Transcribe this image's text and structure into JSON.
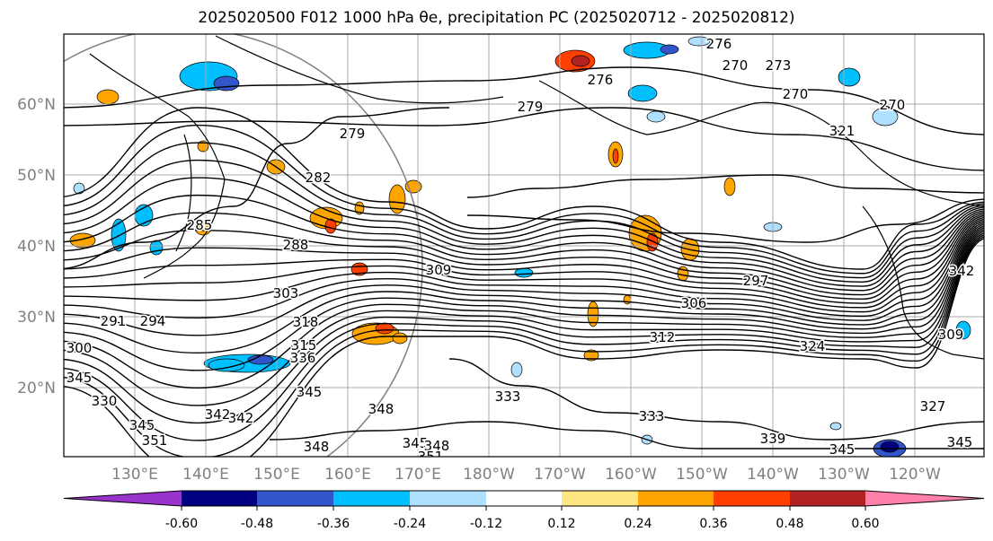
{
  "chart_data": {
    "type": "contour",
    "title": "2025020500 F012 1000 hPa θe, precipitation PC (2025020712 - 2025020812)",
    "map": {
      "lon_range": [
        120,
        -110
      ],
      "lat_range": [
        10,
        70
      ],
      "lon_ticks": [
        "130°E",
        "140°E",
        "150°E",
        "160°E",
        "170°E",
        "180°W",
        "170°W",
        "160°W",
        "150°W",
        "140°W",
        "130°W",
        "120°W"
      ],
      "lat_ticks": [
        "20°N",
        "30°N",
        "40°N",
        "50°N",
        "60°N"
      ],
      "grid": true
    },
    "contour_field": "theta_e",
    "contour_color": "#000000",
    "contour_labels": [
      "276",
      "270",
      "273",
      "270",
      "270",
      "279",
      "276",
      "279",
      "282",
      "285",
      "288",
      "291",
      "294",
      "300",
      "303",
      "309",
      "306",
      "297",
      "312",
      "318",
      "324",
      "333",
      "336",
      "345",
      "342",
      "348",
      "351",
      "345",
      "348",
      "351",
      "333",
      "339",
      "345",
      "330",
      "345",
      "348",
      "342",
      "345",
      "327",
      "309",
      "342",
      "345",
      "315",
      "321"
    ],
    "fill_field": "precipitation PC",
    "colorbar": {
      "ticks": [
        "-0.60",
        "-0.48",
        "-0.36",
        "-0.24",
        "-0.12",
        "0.12",
        "0.24",
        "0.36",
        "0.48",
        "0.60"
      ],
      "colors": [
        "#9933cc",
        "#000080",
        "#3355cc",
        "#00bfff",
        "#b0e0ff",
        "#ffffff",
        "#ffe680",
        "#ffa500",
        "#ff4000",
        "#b22222",
        "#ff80aa",
        "#ff80cc"
      ],
      "extend": "both"
    }
  }
}
